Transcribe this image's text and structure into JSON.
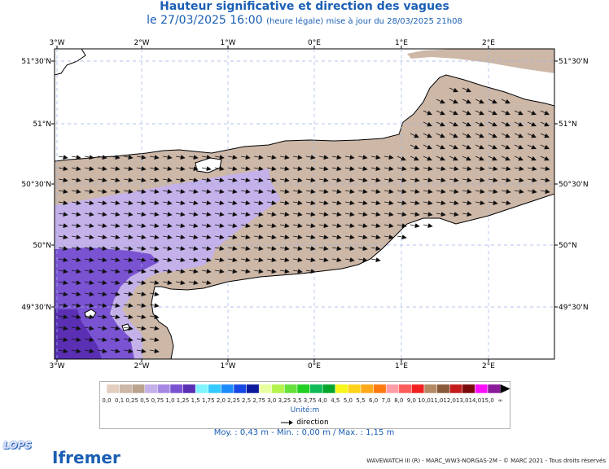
{
  "title": "Hauteur significative et direction des vagues",
  "date_main": "le 27/03/2025 16:00",
  "date_sub": "(heure légale) mise à jour du 28/03/2025 21h08",
  "axes": {
    "top": [
      "3°W",
      "2°W",
      "1°W",
      "0°E",
      "1°E",
      "2°E"
    ],
    "bottom": [
      "3°W",
      "2°W",
      "1°W",
      "0°E",
      "1°E",
      "2°E"
    ],
    "left": [
      "51°30'N",
      "51°N",
      "50°30'N",
      "50°N",
      "49°30'N"
    ],
    "right": [
      "51°30'N",
      "51°N",
      "50°30'N",
      "50°N",
      "49°30'N"
    ]
  },
  "legend": {
    "labels": [
      "0,0",
      "0,1",
      "0,25",
      "0,5",
      "0,75",
      "1,0",
      "1,25",
      "1,5",
      "1,75",
      "2,0",
      "2,25",
      "2,5",
      "2,75",
      "3,0",
      "3,25",
      "3,5",
      "3,75",
      "4,0",
      "4,5",
      "5,0",
      "5,5",
      "6,0",
      "7,0",
      "8,0",
      "9,0",
      "10,0",
      "11,0",
      "12,0",
      "13,0",
      "14,0",
      "15,0",
      "∞"
    ],
    "colors": [
      "#e3cebf",
      "#cdb7a7",
      "#b9a38f",
      "#c5b1ea",
      "#a688e4",
      "#7a53d2",
      "#5a2fb4",
      "#7ff4ff",
      "#33cbff",
      "#1c8cff",
      "#1747e4",
      "#0d1a9c",
      "#e8ffa0",
      "#b4f34c",
      "#66e03a",
      "#21d021",
      "#10bb58",
      "#05a52c",
      "#f6f61b",
      "#ffd21a",
      "#ffa91a",
      "#ff7b10",
      "#ff9da8",
      "#ff5c5c",
      "#f02020",
      "#b58a65",
      "#8a5b3a",
      "#c41c1c",
      "#7a0a0a",
      "#ff10ff",
      "#8a1c9a"
    ],
    "unit": "Unité:m",
    "direction": "direction"
  },
  "stats": "Moy. : 0,43 m   -   Min. : 0,00 m / Max. : 1,15 m",
  "credit": "WAVEWATCH III (R) - MARC_WW3-NORGAS-2M - © MARC 2021 - Tous droits réservés",
  "logos": {
    "lops": "LOPS",
    "ifremer": "Ifremer"
  },
  "colors": {
    "land": "#ffffff",
    "sea_low": "#cdb7a7",
    "sea_mid": "#c5b1ea",
    "sea_high": "#7a53d2",
    "sea_max": "#5a2fb4",
    "title": "#1a5fb4"
  }
}
